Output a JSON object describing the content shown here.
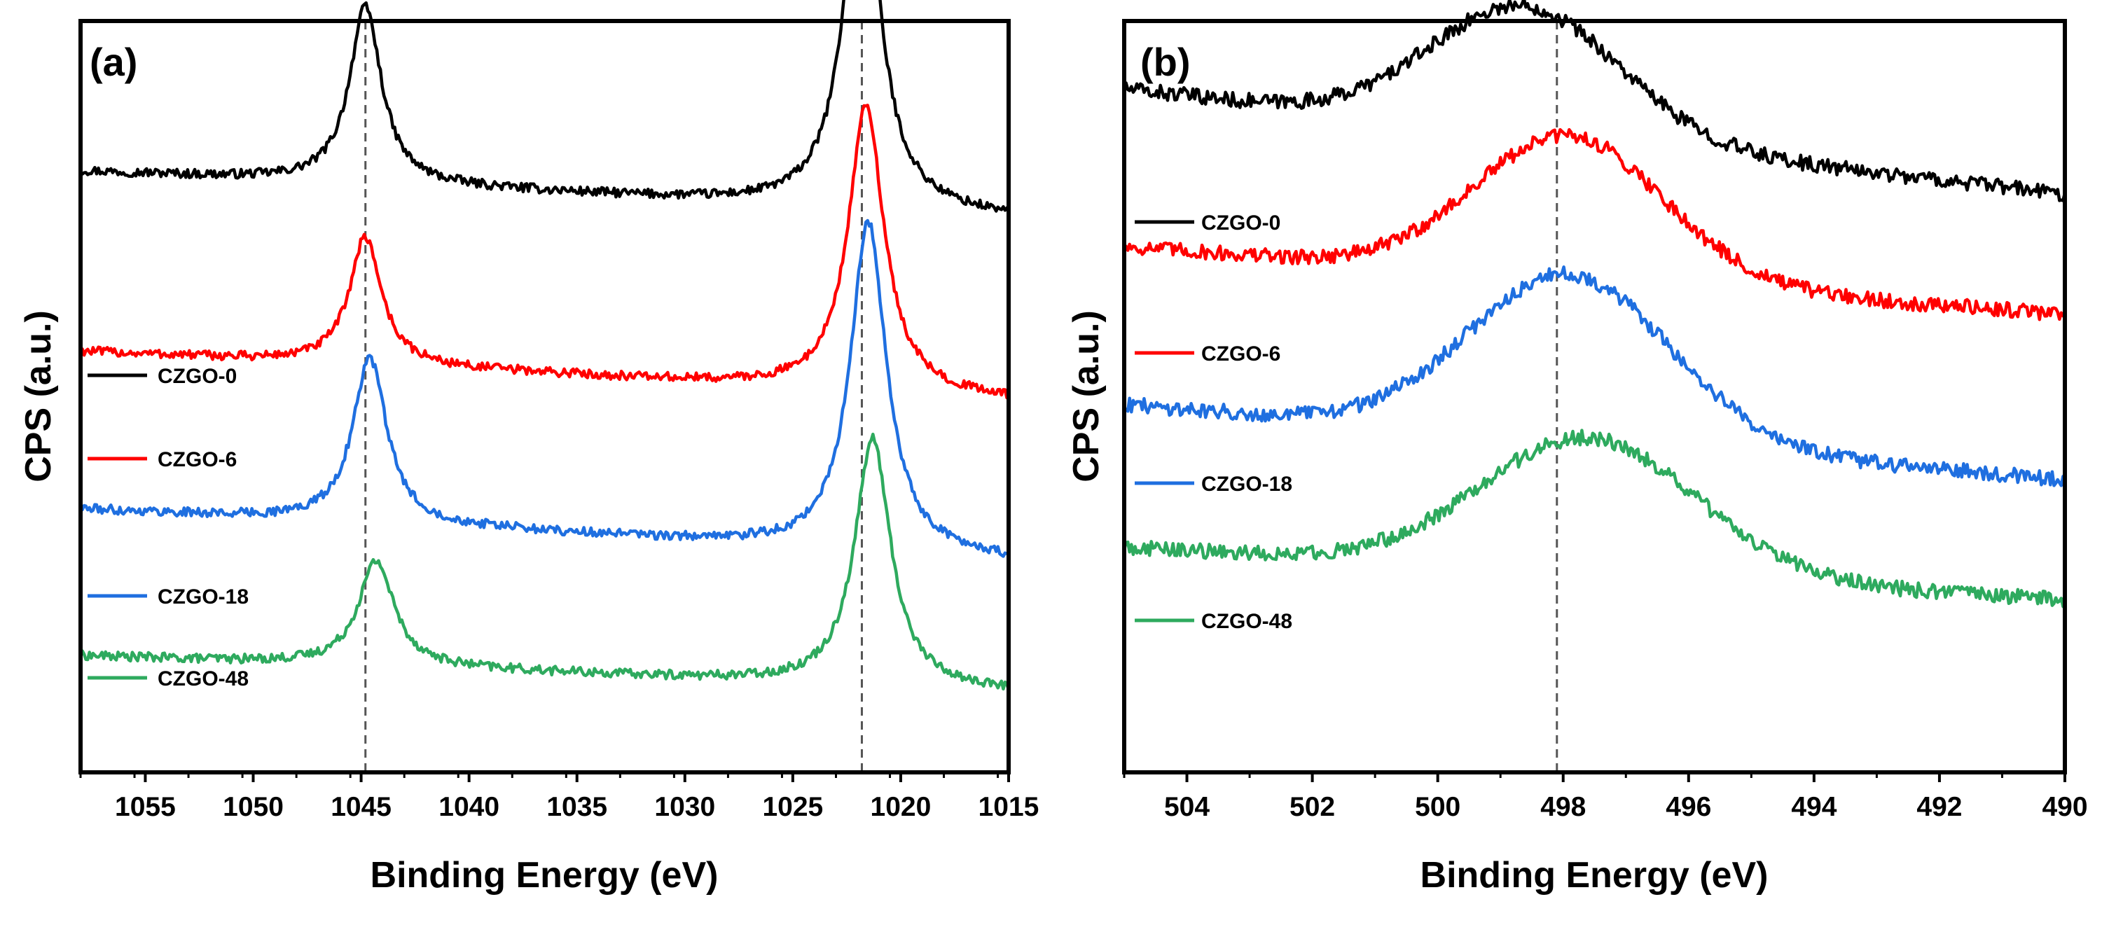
{
  "chart_data": [
    {
      "panel": "(a)",
      "type": "line",
      "xlabel": "Binding Energy (eV)",
      "ylabel": "CPS (a.u.)",
      "xlim": [
        1058,
        1015
      ],
      "x_reversed": true,
      "xticks": [
        1055,
        1050,
        1045,
        1040,
        1035,
        1030,
        1025,
        1020,
        1015
      ],
      "reference_lines": [
        1044.8,
        1021.8
      ],
      "legend": [
        "CZGO-0",
        "CZGO-6",
        "CZGO-18",
        "CZGO-48"
      ],
      "series": [
        {
          "name": "CZGO-0",
          "color": "#000000",
          "baseline": 0.8,
          "offset": 0.705,
          "peaks": [
            [
              1044.8,
              0.235,
              0.9
            ],
            [
              1021.8,
              0.47,
              1.0
            ]
          ]
        },
        {
          "name": "CZGO-6",
          "color": "#ff0000",
          "baseline": 0.56,
          "offset": 0.46,
          "peaks": [
            [
              1044.8,
              0.17,
              0.9
            ],
            [
              1021.6,
              0.38,
              1.0
            ]
          ]
        },
        {
          "name": "CZGO-18",
          "color": "#1f6fe0",
          "baseline": 0.35,
          "offset": 0.245,
          "peaks": [
            [
              1044.6,
              0.22,
              0.95
            ],
            [
              1021.5,
              0.44,
              1.0
            ]
          ]
        },
        {
          "name": "CZGO-48",
          "color": "#2eaa5e",
          "baseline": 0.155,
          "offset": 0.08,
          "peaks": [
            [
              1044.3,
              0.14,
              1.0
            ],
            [
              1021.3,
              0.33,
              1.0
            ]
          ]
        }
      ]
    },
    {
      "panel": "(b)",
      "type": "line",
      "xlabel": "Binding Energy (eV)",
      "ylabel": "CPS (a.u.)",
      "xlim": [
        505,
        490
      ],
      "x_reversed": true,
      "xticks": [
        504,
        502,
        500,
        498,
        496,
        494,
        492,
        490
      ],
      "reference_lines": [
        498.1
      ],
      "legend": [
        "CZGO-0",
        "CZGO-6",
        "CZGO-18",
        "CZGO-48"
      ],
      "series": [
        {
          "name": "CZGO-0",
          "color": "#000000",
          "start": 0.91,
          "end": 0.77,
          "peak_x": 498.6,
          "peak_h": 0.17,
          "sigma": 1.5
        },
        {
          "name": "CZGO-6",
          "color": "#ff0000",
          "start": 0.7,
          "end": 0.61,
          "peak_x": 497.9,
          "peak_h": 0.19,
          "sigma": 1.5
        },
        {
          "name": "CZGO-18",
          "color": "#1f6fe0",
          "start": 0.49,
          "end": 0.39,
          "peak_x": 497.9,
          "peak_h": 0.22,
          "sigma": 1.6
        },
        {
          "name": "CZGO-48",
          "color": "#2eaa5e",
          "start": 0.3,
          "end": 0.23,
          "peak_x": 497.6,
          "peak_h": 0.18,
          "sigma": 1.7
        }
      ]
    }
  ]
}
